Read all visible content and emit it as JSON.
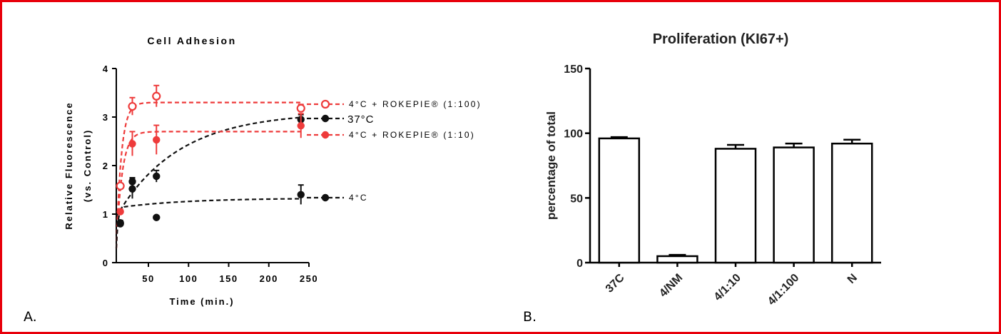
{
  "frame_color": "#e8000b",
  "panel_labels": {
    "a": "A.",
    "b": "B."
  },
  "chart_data": [
    {
      "type": "scatter",
      "title": "Cell Adhesion",
      "xlabel": "Time (min.)",
      "ylabel_line1": "Relative Fluorescence",
      "ylabel_line2": "(vs. Control)",
      "xlim": [
        10,
        250
      ],
      "ylim": [
        0,
        4
      ],
      "xticks": [
        "50",
        "100",
        "150",
        "200",
        "250"
      ],
      "xtick_values": [
        50,
        100,
        150,
        200,
        250
      ],
      "yticks": [
        "0",
        "1",
        "2",
        "3",
        "4"
      ],
      "ytick_values": [
        0,
        1,
        2,
        3,
        4
      ],
      "grid": false,
      "legend_position": "right",
      "series": [
        {
          "name": "4°C + ROKEPIE® (1:100)",
          "marker": "open-circle",
          "color": "#ee3b3b",
          "x": [
            15,
            30,
            60,
            240
          ],
          "y": [
            1.58,
            3.22,
            3.43,
            3.18
          ],
          "err": [
            0.05,
            0.18,
            0.22,
            0.08
          ],
          "fit": {
            "ymax": 3.3,
            "k": 0.16,
            "y0": 0.3
          }
        },
        {
          "name": "37°C",
          "marker": "filled-circle",
          "color": "#111111",
          "x": [
            15,
            30,
            60,
            240
          ],
          "y": [
            0.82,
            1.52,
            1.78,
            2.95
          ],
          "err": [
            0.05,
            0.2,
            0.12,
            0.1
          ],
          "fit": {
            "ymax": 3.1,
            "k": 0.013,
            "y0": 0.95
          }
        },
        {
          "name": "4°C + ROKEPIE® (1:10)",
          "marker": "filled-circle",
          "color": "#ee3b3b",
          "x": [
            15,
            30,
            60,
            240
          ],
          "y": [
            1.05,
            2.45,
            2.53,
            2.82
          ],
          "err": [
            0.05,
            0.25,
            0.3,
            0.25
          ],
          "fit": {
            "ymax": 2.7,
            "k": 0.14,
            "y0": 0.3
          }
        },
        {
          "name": "4°C",
          "marker": "filled-circle",
          "color": "#111111",
          "x": [
            15,
            30,
            60,
            240
          ],
          "y": [
            0.8,
            1.67,
            0.93,
            1.4
          ],
          "err": [
            0.05,
            0.08,
            0.0,
            0.2
          ],
          "fit": {
            "ymax": 1.34,
            "k": 0.04,
            "y0": 0.3,
            "plateau_scale": 0.18
          }
        }
      ]
    },
    {
      "type": "bar",
      "title": "Proliferation (KI67+)",
      "ylabel": "percentage of total",
      "categories": [
        "37C",
        "4/NM",
        "4/1:10",
        "4/1:100",
        "N"
      ],
      "values": [
        96,
        5,
        88,
        89,
        92
      ],
      "errors": [
        1,
        1,
        3,
        3,
        3
      ],
      "ylim": [
        0,
        150
      ],
      "yticks": [
        "0",
        "50",
        "100",
        "150"
      ],
      "ytick_values": [
        0,
        50,
        100,
        150
      ],
      "bar_fill": "#ffffff",
      "bar_edge": "#000000",
      "grid": false
    }
  ]
}
